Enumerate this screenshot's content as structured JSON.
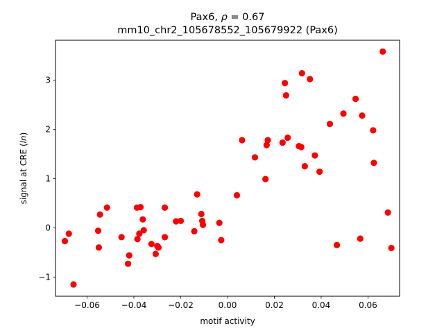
{
  "chart_data": {
    "type": "scatter",
    "title_line1_prefix": "Pax6, ",
    "title_line1_rho": "ρ",
    "title_line1_suffix": " = 0.67",
    "title_line2": "mm10_chr2_105678552_105679922 (Pax6)",
    "xlabel": "motif activity",
    "ylabel_prefix": "signal at CRE (",
    "ylabel_italic": "ln",
    "ylabel_suffix": ")",
    "xlim": [
      -0.0735,
      0.0735
    ],
    "ylim": [
      -1.39,
      3.81
    ],
    "xticks": [
      -0.06,
      -0.04,
      -0.02,
      0.0,
      0.02,
      0.04,
      0.06
    ],
    "xtick_labels": [
      "−0.06",
      "−0.04",
      "−0.02",
      "0.00",
      "0.02",
      "0.04",
      "0.06"
    ],
    "yticks": [
      -1,
      0,
      1,
      2,
      3
    ],
    "ytick_labels": [
      "−1",
      "0",
      "1",
      "2",
      "3"
    ],
    "grid": false,
    "marker_color": "#ff0000",
    "points": [
      {
        "x": -0.0695,
        "y": -0.27
      },
      {
        "x": -0.0678,
        "y": -0.12
      },
      {
        "x": -0.0658,
        "y": -1.15
      },
      {
        "x": -0.0553,
        "y": -0.06
      },
      {
        "x": -0.055,
        "y": -0.4
      },
      {
        "x": -0.0545,
        "y": 0.27
      },
      {
        "x": -0.0515,
        "y": 0.41
      },
      {
        "x": -0.0453,
        "y": -0.19
      },
      {
        "x": -0.0425,
        "y": -0.73
      },
      {
        "x": -0.042,
        "y": -0.56
      },
      {
        "x": -0.0387,
        "y": 0.41
      },
      {
        "x": -0.0385,
        "y": -0.23
      },
      {
        "x": -0.0377,
        "y": -0.12
      },
      {
        "x": -0.0372,
        "y": 0.42
      },
      {
        "x": -0.0362,
        "y": 0.17
      },
      {
        "x": -0.0358,
        "y": -0.05
      },
      {
        "x": -0.0325,
        "y": -0.33
      },
      {
        "x": -0.0307,
        "y": -0.53
      },
      {
        "x": -0.03,
        "y": -0.37
      },
      {
        "x": -0.0295,
        "y": -0.4
      },
      {
        "x": -0.0268,
        "y": 0.41
      },
      {
        "x": -0.0268,
        "y": -0.19
      },
      {
        "x": -0.022,
        "y": 0.13
      },
      {
        "x": -0.02,
        "y": 0.14
      },
      {
        "x": -0.0142,
        "y": -0.07
      },
      {
        "x": -0.013,
        "y": 0.68
      },
      {
        "x": -0.0112,
        "y": 0.28
      },
      {
        "x": -0.0108,
        "y": 0.14
      },
      {
        "x": -0.0105,
        "y": 0.06
      },
      {
        "x": -0.0035,
        "y": 0.1
      },
      {
        "x": -0.0027,
        "y": -0.25
      },
      {
        "x": 0.004,
        "y": 0.66
      },
      {
        "x": 0.0062,
        "y": 1.78
      },
      {
        "x": 0.0117,
        "y": 1.43
      },
      {
        "x": 0.0162,
        "y": 0.99
      },
      {
        "x": 0.0167,
        "y": 1.68
      },
      {
        "x": 0.0172,
        "y": 1.78
      },
      {
        "x": 0.0235,
        "y": 1.73
      },
      {
        "x": 0.0245,
        "y": 2.94
      },
      {
        "x": 0.025,
        "y": 2.69
      },
      {
        "x": 0.0257,
        "y": 1.83
      },
      {
        "x": 0.0305,
        "y": 1.66
      },
      {
        "x": 0.0315,
        "y": 1.64
      },
      {
        "x": 0.0318,
        "y": 3.14
      },
      {
        "x": 0.033,
        "y": 1.25
      },
      {
        "x": 0.0352,
        "y": 3.02
      },
      {
        "x": 0.0373,
        "y": 1.47
      },
      {
        "x": 0.0393,
        "y": 1.14
      },
      {
        "x": 0.0437,
        "y": 2.11
      },
      {
        "x": 0.0467,
        "y": -0.35
      },
      {
        "x": 0.0495,
        "y": 2.32
      },
      {
        "x": 0.0547,
        "y": 2.62
      },
      {
        "x": 0.0567,
        "y": -0.22
      },
      {
        "x": 0.0575,
        "y": 2.28
      },
      {
        "x": 0.0622,
        "y": 1.98
      },
      {
        "x": 0.0625,
        "y": 1.32
      },
      {
        "x": 0.0663,
        "y": 3.58
      },
      {
        "x": 0.0685,
        "y": 0.31
      },
      {
        "x": 0.07,
        "y": -0.41
      }
    ]
  }
}
